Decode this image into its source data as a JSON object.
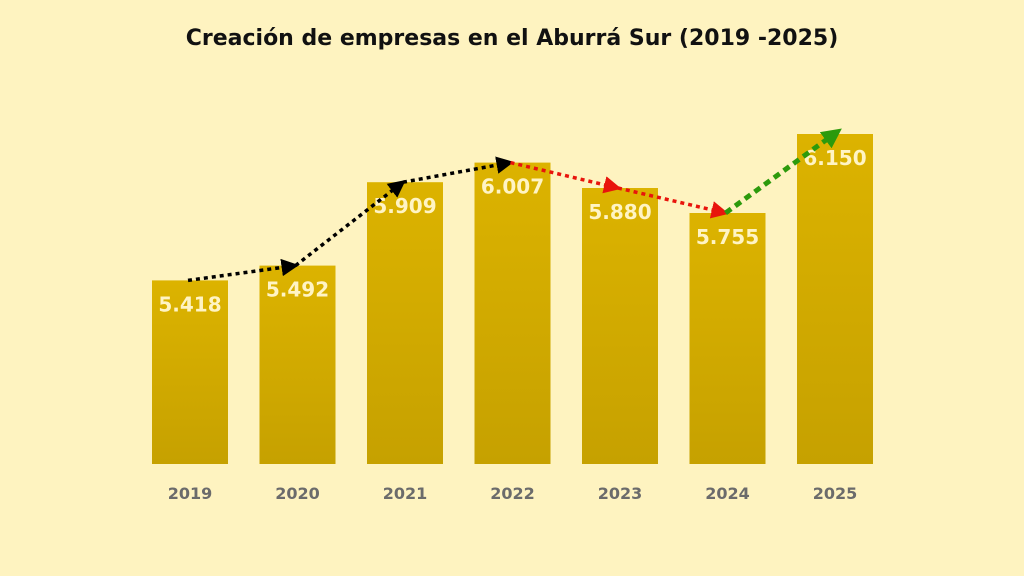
{
  "chart_data": {
    "type": "bar",
    "title": "Creación de empresas en el Aburrá Sur (2019 -2025)",
    "categories": [
      "2019",
      "2020",
      "2021",
      "2022",
      "2023",
      "2024",
      "2025"
    ],
    "values": [
      5418,
      5492,
      5909,
      6007,
      5880,
      5755,
      6150
    ],
    "value_labels": [
      "5.418",
      "5.492",
      "5.909",
      "6.007",
      "5.880",
      "5.755",
      "6.150"
    ],
    "xlabel": "",
    "ylabel": "",
    "ylim": [
      4500,
      6250
    ],
    "grid": false,
    "legend": "none",
    "trend_arrows": [
      {
        "from": "2019",
        "to": "2020",
        "direction": "up"
      },
      {
        "from": "2020",
        "to": "2021",
        "direction": "up"
      },
      {
        "from": "2021",
        "to": "2022",
        "direction": "up"
      },
      {
        "from": "2022",
        "to": "2023",
        "direction": "down"
      },
      {
        "from": "2023",
        "to": "2024",
        "direction": "down"
      },
      {
        "from": "2024",
        "to": "2025",
        "direction": "up"
      }
    ]
  },
  "colors": {
    "background": "#fef3c0",
    "bar_top": "#dcb300",
    "bar_bottom": "#c6a100",
    "value_text": "#fff4c4",
    "tick_text": "#6b6b6b",
    "arrow_up": "#000000",
    "arrow_down": "#e8140c",
    "arrow_final": "#2c9a0c"
  }
}
